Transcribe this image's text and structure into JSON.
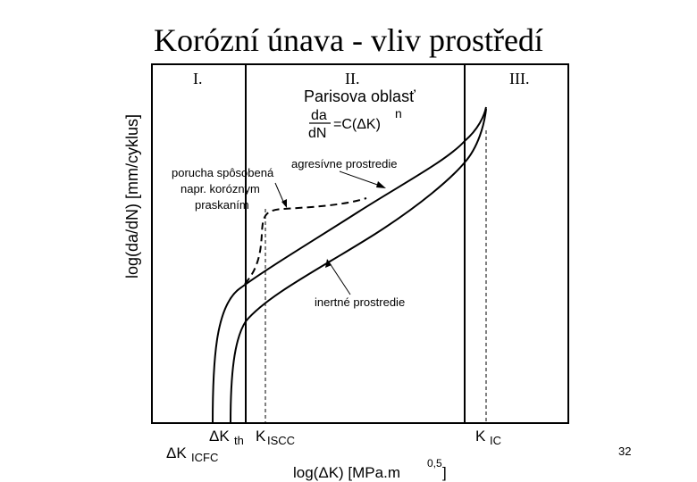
{
  "slide": {
    "title": "Korózní únava - vliv prostředí",
    "page_number": "32"
  },
  "diagram": {
    "y_axis_label": "log(da/dN) [mm/cyklus]",
    "x_axis_label": "log(ΔK) [MPa.m",
    "x_axis_exponent": "0,5",
    "x_axis_close": "]",
    "regions": [
      "I.",
      "II.",
      "III."
    ],
    "paris": {
      "title": "Parisova oblasť",
      "numerator": "da",
      "denominator": "dN",
      "equation": "=C(ΔK)",
      "exponent": "n"
    },
    "annotations": {
      "aggressive": "agresívne prostredie",
      "inert": "inertné prostredie",
      "damage_line1": "porucha spôsobená",
      "damage_line2": "napr. koróznym",
      "damage_line3": "praskaním"
    },
    "ticks": {
      "dk_icfc_main": "ΔK",
      "dk_icfc_sub": "ICFC",
      "dk_th_main": "ΔK",
      "dk_th_sub": "th",
      "k_iscc_main": "K",
      "k_iscc_sub": "ISCC",
      "k_ic_main": "K",
      "k_ic_sub": "IC"
    }
  }
}
